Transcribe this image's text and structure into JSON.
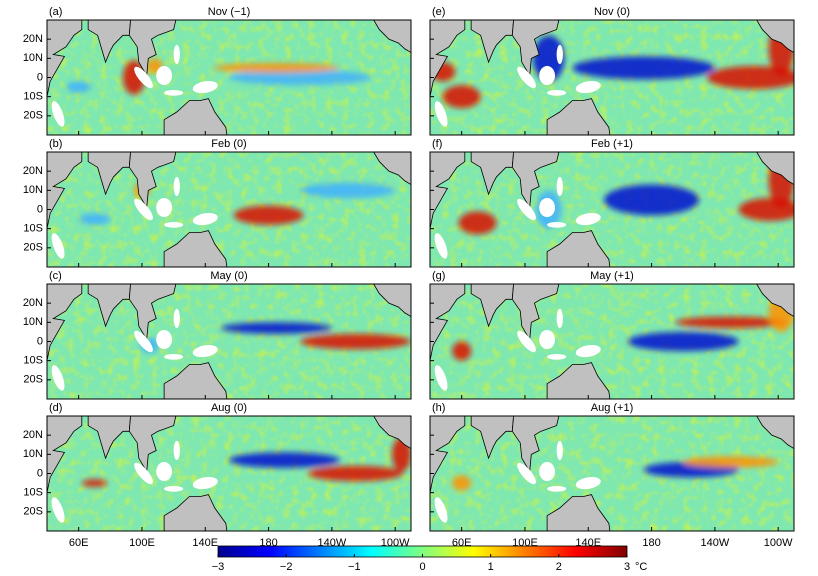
{
  "figure": {
    "panels": [
      {
        "label": "(a)",
        "title": "Nov (−1)"
      },
      {
        "label": "(b)",
        "title": "Feb (0)"
      },
      {
        "label": "(c)",
        "title": "May (0)"
      },
      {
        "label": "(d)",
        "title": "Aug (0)"
      },
      {
        "label": "(e)",
        "title": "Nov (0)"
      },
      {
        "label": "(f)",
        "title": "Feb (+1)"
      },
      {
        "label": "(g)",
        "title": "May (+1)"
      },
      {
        "label": "(h)",
        "title": "Aug (+1)"
      }
    ],
    "xlim": [
      40,
      270
    ],
    "xticks": [
      {
        "value": 60,
        "label": "60E"
      },
      {
        "value": 100,
        "label": "100E"
      },
      {
        "value": 140,
        "label": "140E"
      },
      180,
      {
        "value": 220,
        "label": "140W"
      },
      {
        "value": 260,
        "label": "100W"
      }
    ],
    "ylim": [
      -30,
      30
    ],
    "yticks": [
      {
        "value": 20,
        "label": "20N"
      },
      {
        "value": 10,
        "label": "10N"
      },
      0,
      {
        "value": -10,
        "label": "10S"
      },
      {
        "value": -20,
        "label": "20S"
      }
    ],
    "colorbar": {
      "clim": [
        -3,
        3
      ],
      "ticks": [
        {
          "value": -3,
          "label": "−3"
        },
        {
          "value": -2,
          "label": "−2"
        },
        {
          "value": -1,
          "label": "−1"
        },
        0,
        1,
        2,
        3
      ],
      "unit": "°C"
    }
  }
}
